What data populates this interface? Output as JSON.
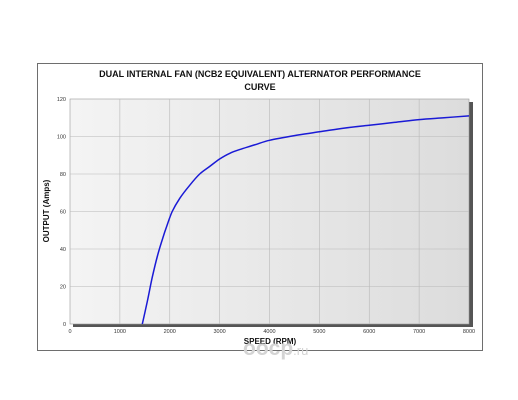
{
  "chart_data": {
    "type": "line",
    "title": "DUAL INTERNAL FAN (NCB2 EQUIVALENT) ALTERNATOR PERFORMANCE\nCURVE",
    "xlabel": "SPEED (RPM)",
    "ylabel": "OUTPUT (Amps)",
    "xlim": [
      0,
      8000
    ],
    "ylim": [
      0,
      120
    ],
    "xticks": [
      0,
      1000,
      2000,
      3000,
      4000,
      5000,
      6000,
      7000,
      8000
    ],
    "yticks": [
      0,
      20,
      40,
      60,
      80,
      100,
      120
    ],
    "grid": true,
    "series": [
      {
        "color": "#1a1ad6",
        "x": [
          1450,
          1550,
          1650,
          1750,
          1850,
          1950,
          2050,
          2200,
          2400,
          2600,
          2800,
          3000,
          3200,
          3400,
          3700,
          4000,
          4500,
          5000,
          5500,
          6000,
          6500,
          7000,
          7500,
          8000
        ],
        "y": [
          0,
          12,
          25,
          36,
          45,
          53,
          60,
          67,
          74,
          80,
          84,
          88,
          91,
          93,
          95.5,
          98,
          100.5,
          102.5,
          104.5,
          106,
          107.5,
          109,
          110,
          111
        ]
      }
    ]
  },
  "watermark": {
    "main": "oocp",
    "tld": ".ru"
  }
}
